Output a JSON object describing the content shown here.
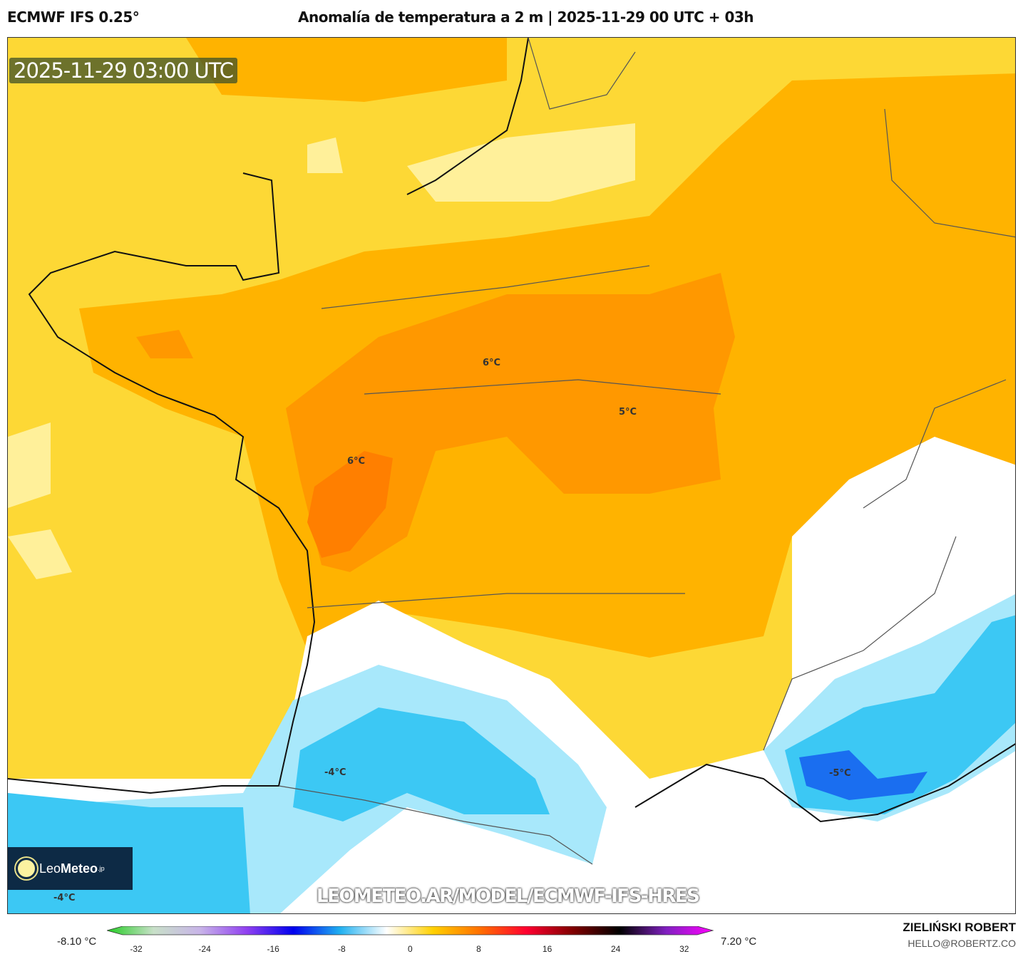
{
  "header": {
    "model": "ECMWF IFS 0.25°",
    "title": "Anomalía de temperatura a 2 m | 2025-11-29 00 UTC + 03h"
  },
  "map": {
    "valid_time": "2025-11-29 03:00 UTC",
    "labels": [
      {
        "text": "6°C"
      },
      {
        "text": "5°C"
      },
      {
        "text": "6°C"
      },
      {
        "text": "-4°C"
      },
      {
        "text": "-5°C"
      },
      {
        "text": "-4°C"
      }
    ],
    "watermark_url": "LEOMETEO.AR/MODEL/ECMWF-IFS-HRES",
    "logo": {
      "leo": "Leo",
      "meteo": "Meteo",
      "suffix": ".jp"
    },
    "colors": {
      "warm_base": "#fdd835",
      "orange": "#ffb300",
      "dark_orange": "#ff8f00",
      "deep_orange": "#ff7a00",
      "light_yellow": "#fff3a0",
      "white": "#ffffff",
      "light_blue": "#a8e8fb",
      "blue": "#3cc8f4",
      "deep_blue": "#1a6ef0"
    }
  },
  "colorbar": {
    "min_label": "-8.10 °C",
    "max_label": "7.20 °C",
    "ticks": [
      "-32",
      "-24",
      "-16",
      "-8",
      "0",
      "8",
      "16",
      "24",
      "32"
    ],
    "stops": [
      "#22cc22",
      "#c8e0c8",
      "#c8b4e8",
      "#9040f0",
      "#0000ee",
      "#20b0f0",
      "#ffffff",
      "#ffd000",
      "#ff7000",
      "#ff0030",
      "#800000",
      "#000000",
      "#8020c0",
      "#ff00ff"
    ]
  },
  "footer": {
    "author": "ZIELIŃSKI ROBERT",
    "email": "HELLO@ROBERTZ.CO"
  }
}
